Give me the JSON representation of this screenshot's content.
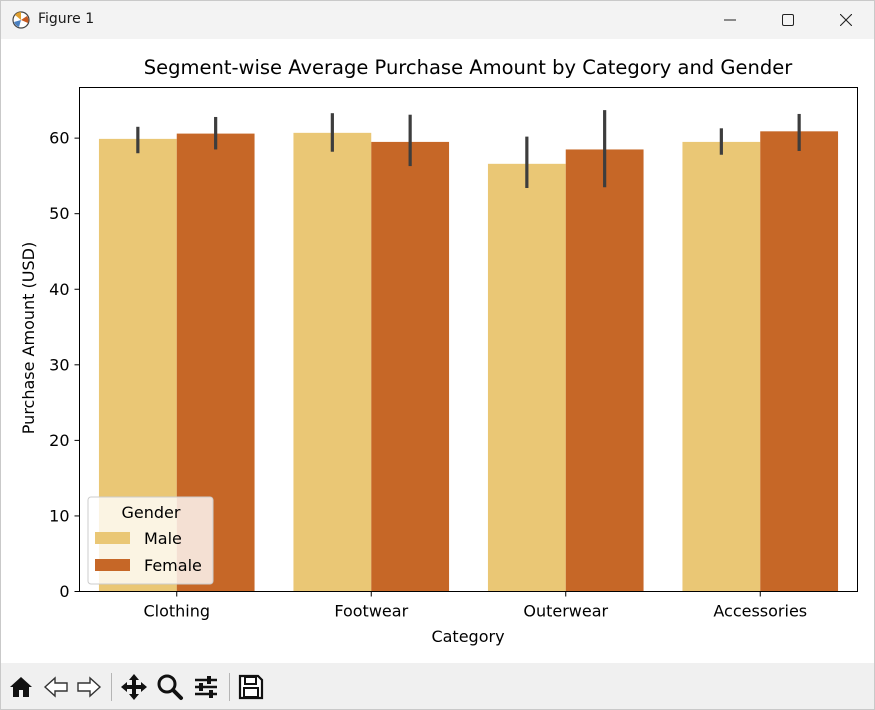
{
  "window": {
    "title": "Figure 1"
  },
  "toolbar": {
    "buttons": [
      "home-icon",
      "back-icon",
      "forward-icon",
      "pan-icon",
      "zoom-icon",
      "configure-subplots-icon",
      "save-icon"
    ]
  },
  "colors": {
    "male": "#eac775",
    "female": "#c66727",
    "errorbar": "#3d3d3d"
  },
  "chart_data": {
    "type": "bar",
    "title": "Segment-wise Average Purchase Amount by Category and Gender",
    "xlabel": "Category",
    "ylabel": "Purchase Amount (USD)",
    "categories": [
      "Clothing",
      "Footwear",
      "Outerwear",
      "Accessories"
    ],
    "ylim": [
      0,
      66.7
    ],
    "yticks": [
      0,
      10,
      20,
      30,
      40,
      50,
      60
    ],
    "grid": false,
    "legend": {
      "title": "Gender",
      "position": "lower-left"
    },
    "series": [
      {
        "name": "Male",
        "values": [
          59.9,
          60.7,
          56.6,
          59.5
        ],
        "ci_low": [
          58.0,
          58.2,
          53.4,
          57.8
        ],
        "ci_high": [
          61.5,
          63.3,
          60.2,
          61.3
        ]
      },
      {
        "name": "Female",
        "values": [
          60.6,
          59.5,
          58.5,
          60.9
        ],
        "ci_low": [
          58.5,
          56.3,
          53.5,
          58.3
        ],
        "ci_high": [
          62.8,
          63.1,
          63.7,
          63.2
        ]
      }
    ]
  }
}
